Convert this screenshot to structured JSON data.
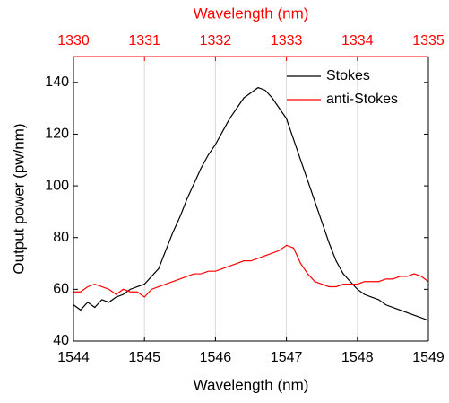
{
  "chart_data": {
    "type": "line",
    "xlabel": "Wavelength (nm)",
    "ylabel": "Output power (pw/nm)",
    "x2label": "Wavelength (nm)",
    "x2color": "#ff0000",
    "x": [
      1544.0,
      1544.1,
      1544.2,
      1544.3,
      1544.4,
      1544.5,
      1544.6,
      1544.7,
      1544.8,
      1544.9,
      1545.0,
      1545.1,
      1545.2,
      1545.3,
      1545.4,
      1545.5,
      1545.6,
      1545.7,
      1545.8,
      1545.9,
      1546.0,
      1546.1,
      1546.2,
      1546.3,
      1546.4,
      1546.5,
      1546.6,
      1546.7,
      1546.8,
      1546.9,
      1547.0,
      1547.1,
      1547.2,
      1547.3,
      1547.4,
      1547.5,
      1547.6,
      1547.7,
      1547.8,
      1547.9,
      1548.0,
      1548.1,
      1548.2,
      1548.3,
      1548.4,
      1548.5,
      1548.6,
      1548.7,
      1548.8,
      1548.9,
      1549.0
    ],
    "series": [
      {
        "name": "Stokes",
        "color": "#000000",
        "values": [
          54,
          52,
          55,
          53,
          56,
          55,
          57,
          58,
          60,
          61,
          62,
          65,
          68,
          75,
          82,
          88,
          95,
          101,
          107,
          112,
          116,
          121,
          126,
          130,
          134,
          136,
          138,
          137,
          134,
          130,
          126,
          118,
          110,
          102,
          94,
          86,
          78,
          71,
          66,
          63,
          60,
          58,
          57,
          56,
          54,
          53,
          52,
          51,
          50,
          49,
          48
        ]
      },
      {
        "name": "anti-Stokes",
        "color": "#ff0000",
        "values": [
          59,
          59,
          61,
          62,
          61,
          60,
          58,
          60,
          59,
          59,
          57,
          60,
          61,
          62,
          63,
          64,
          65,
          66,
          66,
          67,
          67,
          68,
          69,
          70,
          71,
          71,
          72,
          73,
          74,
          75,
          77,
          76,
          70,
          66,
          63,
          62,
          61,
          61,
          62,
          62,
          62,
          63,
          63,
          63,
          64,
          64,
          65,
          65,
          66,
          65,
          63
        ]
      }
    ],
    "xlim": [
      1544,
      1549
    ],
    "xticks": [
      1544,
      1545,
      1546,
      1547,
      1548,
      1549
    ],
    "x2lim": [
      1330,
      1335
    ],
    "x2ticks": [
      1330,
      1331,
      1332,
      1333,
      1334,
      1335
    ],
    "ylim": [
      40,
      150
    ],
    "yticks": [
      40,
      60,
      80,
      100,
      120,
      140
    ],
    "grid": "x",
    "legend": "upper right"
  }
}
